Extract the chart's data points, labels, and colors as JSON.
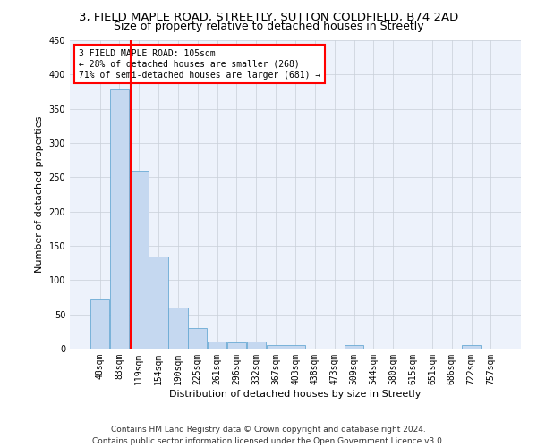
{
  "title_line1": "3, FIELD MAPLE ROAD, STREETLY, SUTTON COLDFIELD, B74 2AD",
  "title_line2": "Size of property relative to detached houses in Streetly",
  "xlabel": "Distribution of detached houses by size in Streetly",
  "ylabel": "Number of detached properties",
  "bar_color": "#c5d8f0",
  "bar_edge_color": "#6aaad4",
  "bins": [
    "48sqm",
    "83sqm",
    "119sqm",
    "154sqm",
    "190sqm",
    "225sqm",
    "261sqm",
    "296sqm",
    "332sqm",
    "367sqm",
    "403sqm",
    "438sqm",
    "473sqm",
    "509sqm",
    "544sqm",
    "580sqm",
    "615sqm",
    "651sqm",
    "686sqm",
    "722sqm",
    "757sqm"
  ],
  "values": [
    72,
    378,
    260,
    135,
    60,
    30,
    10,
    9,
    10,
    5,
    5,
    0,
    0,
    5,
    0,
    0,
    0,
    0,
    0,
    5,
    0
  ],
  "annotation_text_line1": "3 FIELD MAPLE ROAD: 105sqm",
  "annotation_text_line2": "← 28% of detached houses are smaller (268)",
  "annotation_text_line3": "71% of semi-detached houses are larger (681) →",
  "annotation_box_color": "white",
  "annotation_border_color": "red",
  "vline_color": "red",
  "vline_x_index": 1.57,
  "ylim": [
    0,
    450
  ],
  "yticks": [
    0,
    50,
    100,
    150,
    200,
    250,
    300,
    350,
    400,
    450
  ],
  "footer_line1": "Contains HM Land Registry data © Crown copyright and database right 2024.",
  "footer_line2": "Contains public sector information licensed under the Open Government Licence v3.0.",
  "bg_color": "#edf2fb",
  "grid_color": "#c8cfd8",
  "title1_fontsize": 9.5,
  "title2_fontsize": 9,
  "axis_label_fontsize": 8,
  "tick_fontsize": 7,
  "annot_fontsize": 7,
  "footer_fontsize": 6.5
}
